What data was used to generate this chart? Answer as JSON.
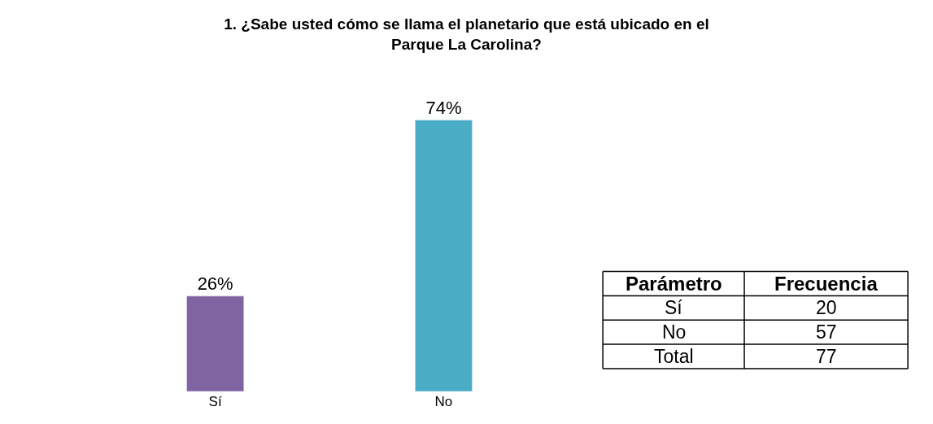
{
  "chart_data": {
    "type": "bar",
    "title": "1. ¿Sabe usted cómo se llama el planetario que está ubicado en el Parque La Carolina?",
    "categories": [
      "Sí",
      "No"
    ],
    "series": [
      {
        "colors": [
          "#8064a2",
          "#4bacc6"
        ],
        "values": [
          26,
          74
        ],
        "value_labels": [
          "26%",
          "74%"
        ]
      }
    ],
    "annotations": [
      "Parámetro",
      "Frecuencia",
      "Sí",
      "20",
      "No",
      "57",
      "Total",
      "77"
    ]
  }
}
